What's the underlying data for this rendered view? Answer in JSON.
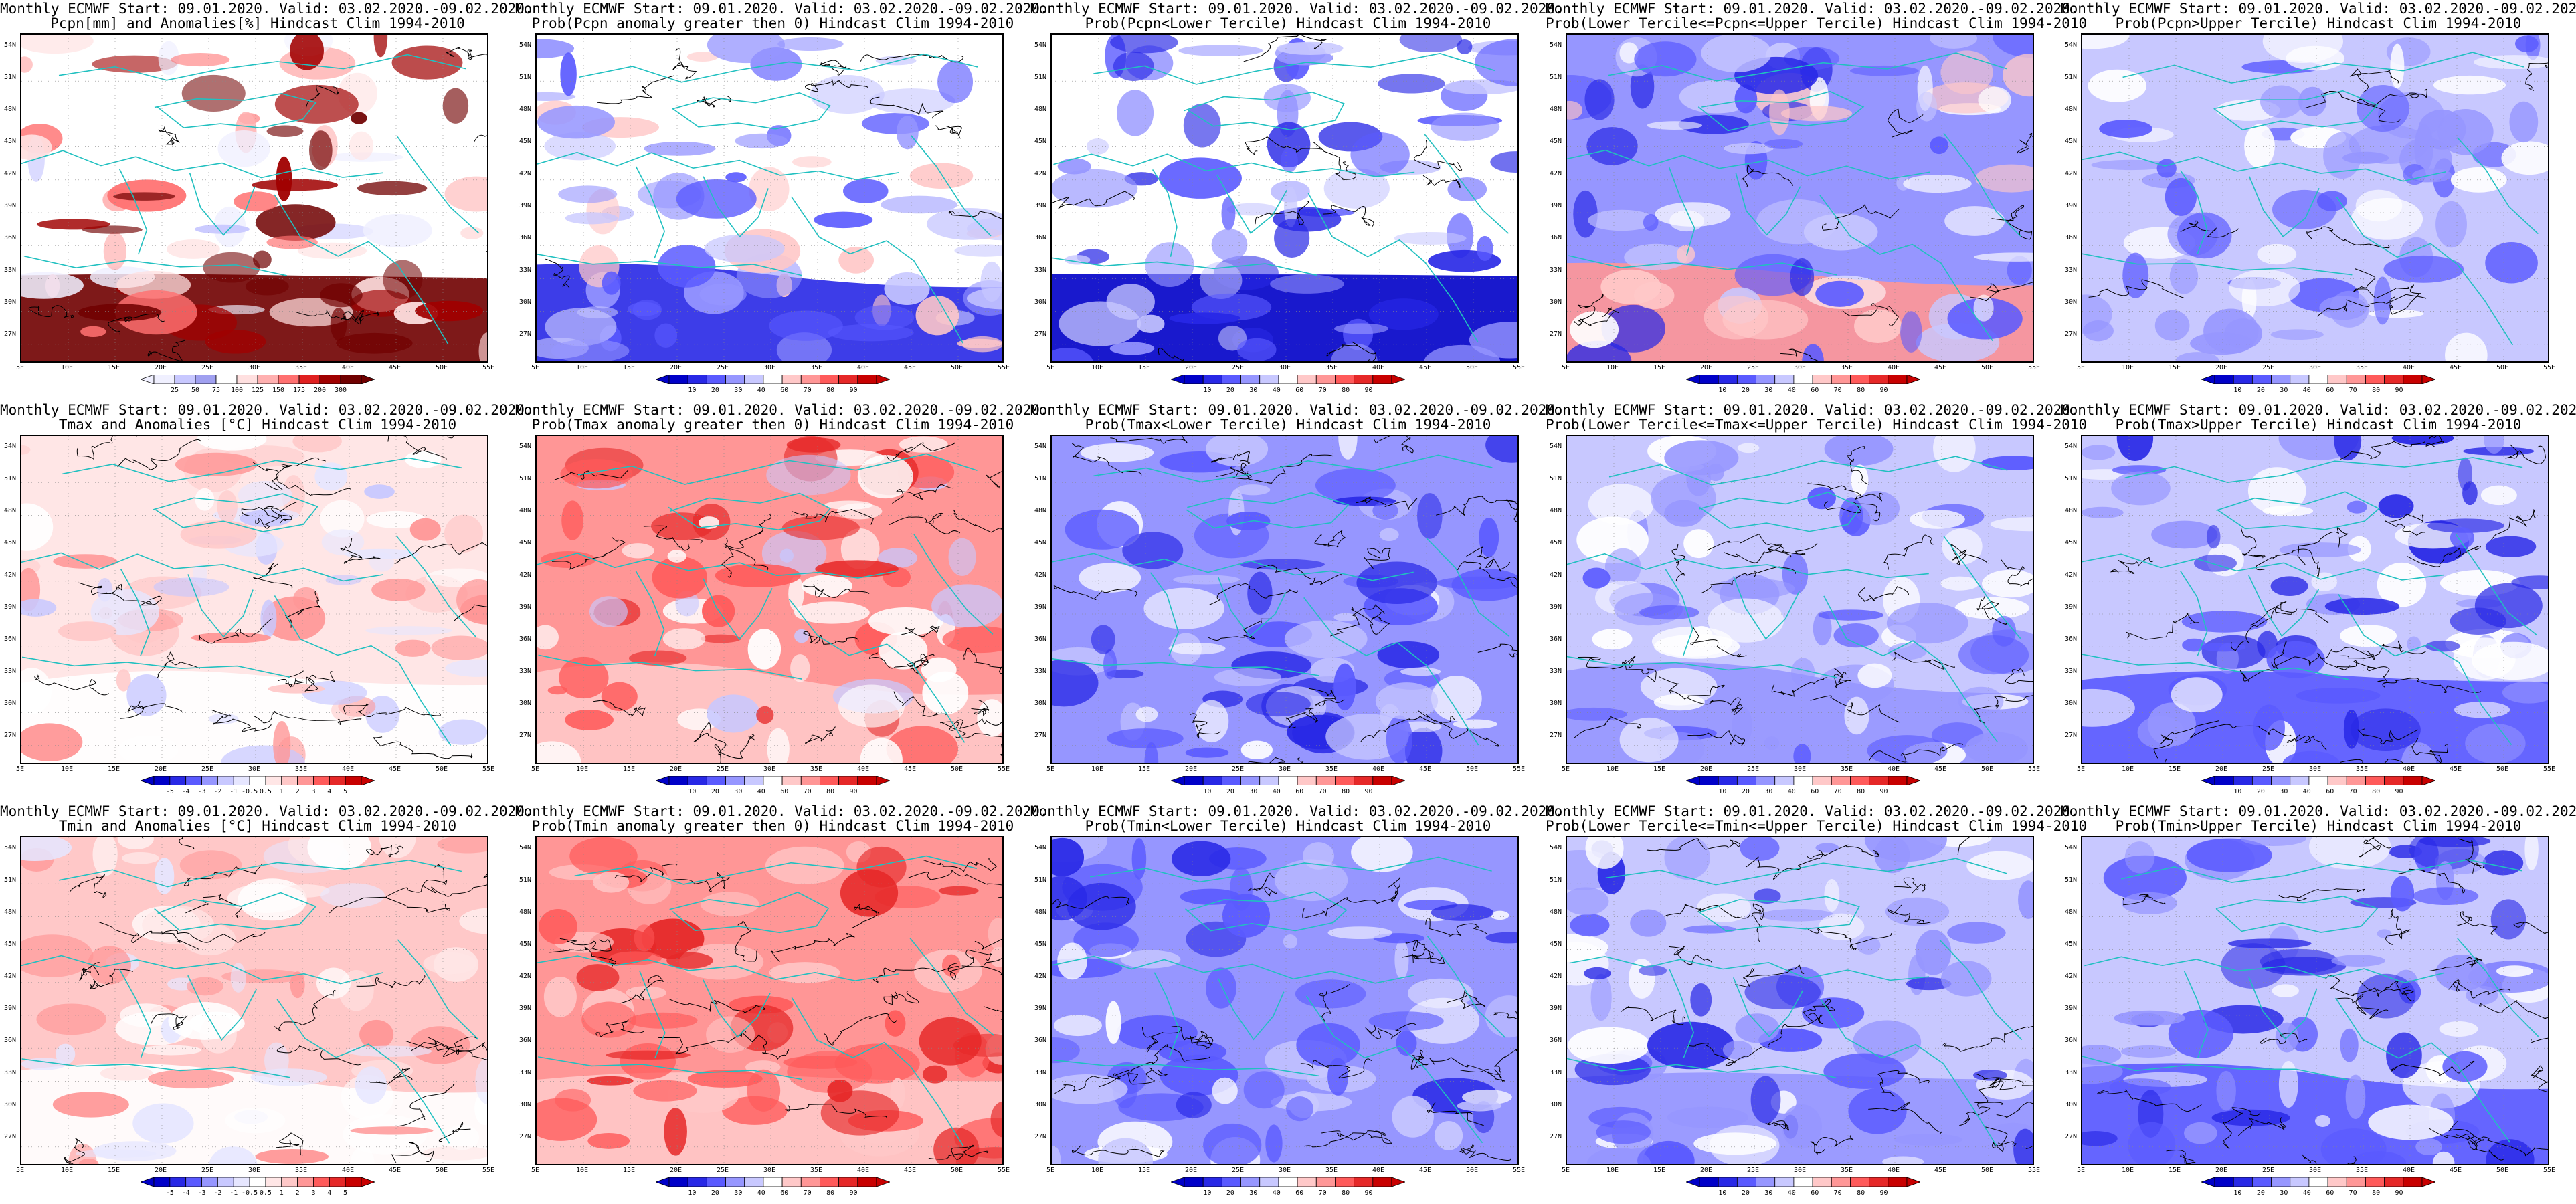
{
  "panels": [
    {
      "title1": "Monthly ECMWF Start: 09.01.2020. Valid: 03.02.2020.-09.02.2020.",
      "title2": "Pcpn[mm] and Anomalies[%]",
      "title2b": "Hindcast Clim 1994-2010",
      "scheme": "precip",
      "colorbar_labels": [
        "25",
        "50",
        "75",
        "100",
        "125",
        "150",
        "175",
        "200",
        "300"
      ]
    },
    {
      "title1": "Monthly ECMWF Start: 09.01.2020. Valid: 03.02.2020.-09.02.2020.",
      "title2": "Prob(Pcpn anomaly greater then 0)",
      "title2b": "Hindcast Clim 1994-2010",
      "scheme": "prob",
      "colorbar_labels": [
        "10",
        "20",
        "30",
        "40",
        "60",
        "70",
        "80",
        "90"
      ]
    },
    {
      "title1": "Monthly ECMWF Start: 09.01.2020. Valid: 03.02.2020.-09.02.2020.",
      "title2": "Prob(Pcpn<Lower Tercile)",
      "title2b": "Hindcast Clim 1994-2010",
      "scheme": "prob",
      "colorbar_labels": [
        "10",
        "20",
        "30",
        "40",
        "60",
        "70",
        "80",
        "90"
      ]
    },
    {
      "title1": "Monthly ECMWF Start: 09.01.2020. Valid: 03.02.2020.-09.02.2020.",
      "title2": "Prob(Lower Tercile<=Pcpn<=Upper Tercile)",
      "title2b": "Hindcast Clim 1994-2010",
      "scheme": "prob",
      "colorbar_labels": [
        "10",
        "20",
        "30",
        "40",
        "60",
        "70",
        "80",
        "90"
      ]
    },
    {
      "title1": "Monthly ECMWF Start: 09.01.2020. Valid: 03.02.2020.-09.02.2020.",
      "title2": "Prob(Pcpn>Upper Tercile)",
      "title2b": "Hindcast Clim 1994-2010",
      "scheme": "prob",
      "colorbar_labels": [
        "10",
        "20",
        "30",
        "40",
        "60",
        "70",
        "80",
        "90"
      ]
    },
    {
      "title1": "Monthly ECMWF Start: 09.01.2020. Valid: 03.02.2020.-09.02.2020.",
      "title2": "Tmax and Anomalies [°C]",
      "title2b": "Hindcast Clim 1994-2010",
      "scheme": "anom",
      "colorbar_labels": [
        "-5",
        "-4",
        "-3",
        "-2",
        "-1",
        "-0.5",
        "0.5",
        "1",
        "2",
        "3",
        "4",
        "5"
      ]
    },
    {
      "title1": "Monthly ECMWF Start: 09.01.2020. Valid: 03.02.2020.-09.02.2020.",
      "title2": "Prob(Tmax anomaly greater then 0)",
      "title2b": "Hindcast Clim 1994-2010",
      "scheme": "prob",
      "colorbar_labels": [
        "10",
        "20",
        "30",
        "40",
        "60",
        "70",
        "80",
        "90"
      ]
    },
    {
      "title1": "Monthly ECMWF Start: 09.01.2020. Valid: 03.02.2020.-09.02.2020.",
      "title2": "Prob(Tmax<Lower Tercile)",
      "title2b": "Hindcast Clim 1994-2010",
      "scheme": "prob",
      "colorbar_labels": [
        "10",
        "20",
        "30",
        "40",
        "60",
        "70",
        "80",
        "90"
      ]
    },
    {
      "title1": "Monthly ECMWF Start: 09.01.2020. Valid: 03.02.2020.-09.02.2020.",
      "title2": "Prob(Lower Tercile<=Tmax<=Upper Tercile)",
      "title2b": "Hindcast Clim 1994-2010",
      "scheme": "prob",
      "colorbar_labels": [
        "10",
        "20",
        "30",
        "40",
        "60",
        "70",
        "80",
        "90"
      ]
    },
    {
      "title1": "Monthly ECMWF Start: 09.01.2020. Valid: 03.02.2020.-09.02.2020.",
      "title2": "Prob(Tmax>Upper Tercile)",
      "title2b": "Hindcast Clim 1994-2010",
      "scheme": "prob",
      "colorbar_labels": [
        "10",
        "20",
        "30",
        "40",
        "60",
        "70",
        "80",
        "90"
      ]
    },
    {
      "title1": "Monthly ECMWF Start: 09.01.2020. Valid: 03.02.2020.-09.02.2020.",
      "title2": "Tmin and Anomalies [°C]",
      "title2b": "Hindcast Clim 1994-2010",
      "scheme": "anom",
      "colorbar_labels": [
        "-5",
        "-4",
        "-3",
        "-2",
        "-1",
        "-0.5",
        "0.5",
        "1",
        "2",
        "3",
        "4",
        "5"
      ]
    },
    {
      "title1": "Monthly ECMWF Start: 09.01.2020. Valid: 03.02.2020.-09.02.2020.",
      "title2": "Prob(Tmin anomaly greater then 0)",
      "title2b": "Hindcast Clim 1994-2010",
      "scheme": "prob",
      "colorbar_labels": [
        "10",
        "20",
        "30",
        "40",
        "60",
        "70",
        "80",
        "90"
      ]
    },
    {
      "title1": "Monthly ECMWF Start: 09.01.2020. Valid: 03.02.2020.-09.02.2020.",
      "title2": "Prob(Tmin<Lower Tercile)",
      "title2b": "Hindcast Clim 1994-2010",
      "scheme": "prob",
      "colorbar_labels": [
        "10",
        "20",
        "30",
        "40",
        "60",
        "70",
        "80",
        "90"
      ]
    },
    {
      "title1": "Monthly ECMWF Start: 09.01.2020. Valid: 03.02.2020.-09.02.2020.",
      "title2": "Prob(Lower Tercile<=Tmin<=Upper Tercile)",
      "title2b": "Hindcast Clim 1994-2010",
      "scheme": "prob",
      "colorbar_labels": [
        "10",
        "20",
        "30",
        "40",
        "60",
        "70",
        "80",
        "90"
      ]
    },
    {
      "title1": "Monthly ECMWF Start: 09.01.2020. Valid: 03.02.2020.-09.02.2020.",
      "title2": "Prob(Tmin>Upper Tercile)",
      "title2b": "Hindcast Clim 1994-2010",
      "scheme": "prob",
      "colorbar_labels": [
        "10",
        "20",
        "30",
        "40",
        "60",
        "70",
        "80",
        "90"
      ]
    }
  ],
  "lat_labels": [
    "54N",
    "51N",
    "48N",
    "45N",
    "42N",
    "39N",
    "36N",
    "33N",
    "30N",
    "27N"
  ],
  "lon_labels": [
    "5E",
    "10E",
    "15E",
    "20E",
    "25E",
    "30E",
    "35E",
    "40E",
    "45E",
    "50E",
    "55E"
  ],
  "colors": {
    "precip": [
      "#f0f0ff",
      "#c8c8ff",
      "#a0a0f0",
      "#ffffff",
      "#ffe0e0",
      "#ffb0b0",
      "#ff7070",
      "#e02020",
      "#a00000",
      "#700000"
    ],
    "prob": [
      "#0000c8",
      "#2828e6",
      "#5a5aff",
      "#9696ff",
      "#c8c8ff",
      "#ffffff",
      "#ffc8c8",
      "#ff9696",
      "#ff5a5a",
      "#e62828",
      "#c80000"
    ],
    "anom": [
      "#0000c8",
      "#2828e6",
      "#5a5aff",
      "#9696ff",
      "#c8c8ff",
      "#e6e6ff",
      "#ffffff",
      "#ffe6e6",
      "#ffc8c8",
      "#ff9696",
      "#ff5a5a",
      "#e62828",
      "#c80000"
    ],
    "coast": "#20c0c0",
    "contour": "#000000"
  }
}
